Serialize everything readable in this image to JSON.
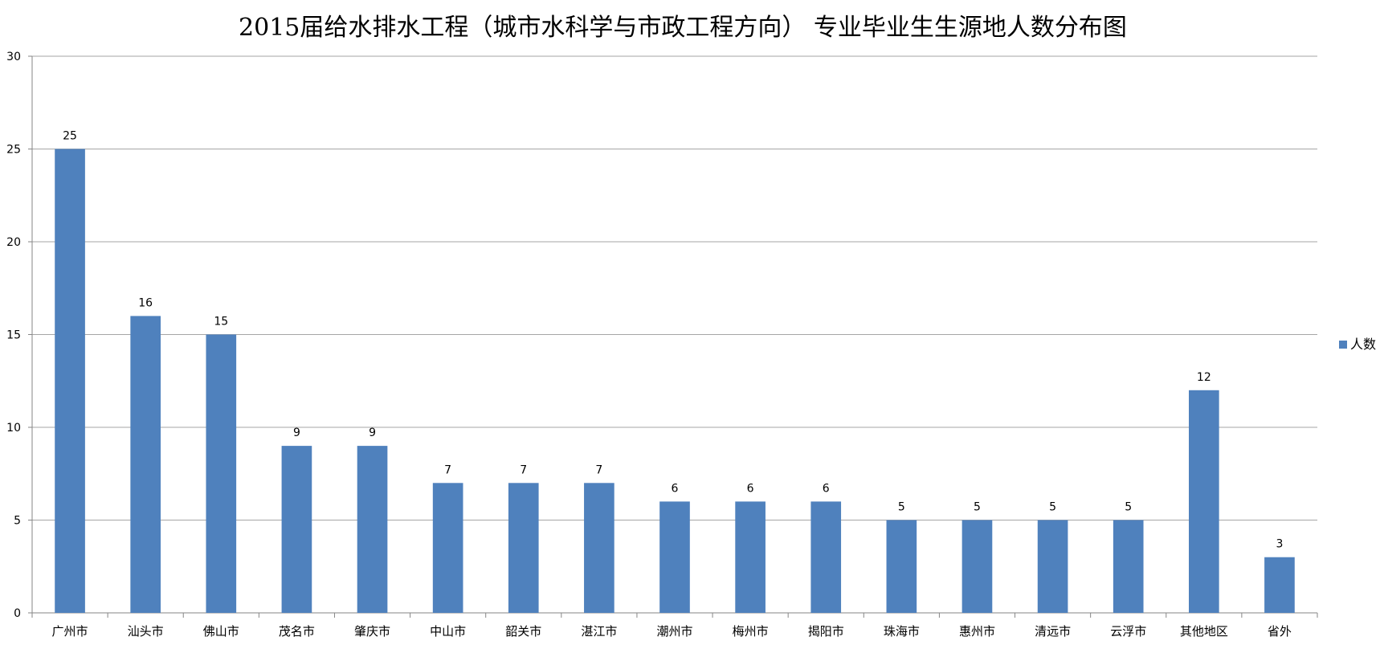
{
  "chart_data": {
    "type": "bar",
    "title": "2015届给水排水工程（城市水科学与市政工程方向）  专业毕业生生源地人数分布图",
    "xlabel": "",
    "ylabel": "",
    "ylim": [
      0,
      30
    ],
    "y_ticks": [
      "0",
      "5",
      "10",
      "15",
      "20",
      "25",
      "30"
    ],
    "grid": true,
    "legend_position": "right",
    "categories": [
      "广州市",
      "汕头市",
      "佛山市",
      "茂名市",
      "肇庆市",
      "中山市",
      "韶关市",
      "湛江市",
      "潮州市",
      "梅州市",
      "揭阳市",
      "珠海市",
      "惠州市",
      "清远市",
      "云浮市",
      "其他地区",
      "省外"
    ],
    "series": [
      {
        "name": "人数",
        "color": "#4F81BD",
        "values": [
          25,
          16,
          15,
          9,
          9,
          7,
          7,
          7,
          6,
          6,
          6,
          5,
          5,
          5,
          5,
          12,
          3
        ]
      }
    ]
  },
  "colors": {
    "bar": "#4F81BD",
    "grid": "#A6A6A6",
    "axis": "#868686"
  }
}
